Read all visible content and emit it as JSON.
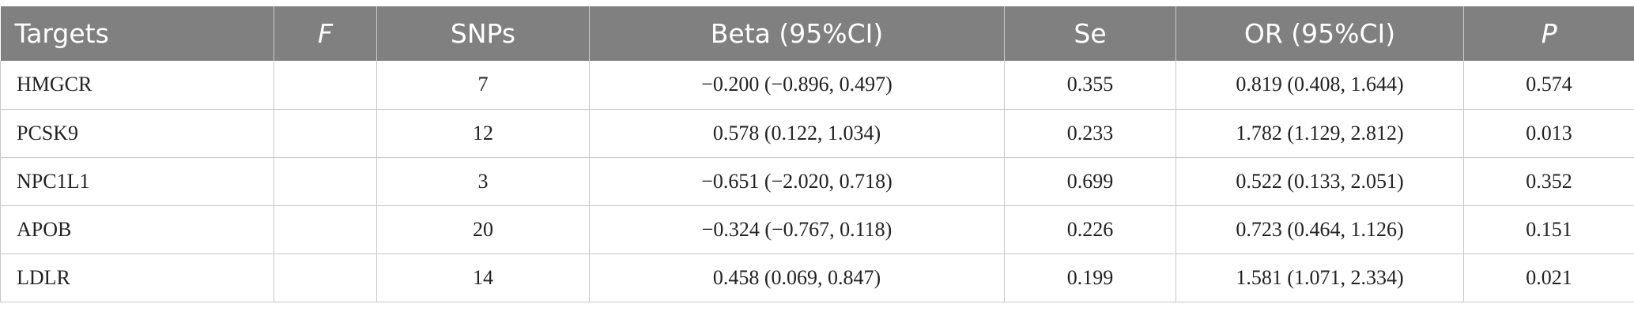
{
  "table": {
    "headers": [
      "Targets",
      "F",
      "SNPs",
      "Beta (95%CI)",
      "Se",
      "OR (95%CI)",
      "P"
    ],
    "rows": [
      [
        "HMGCR",
        "",
        "7",
        "−0.200 (−0.896, 0.497)",
        "0.355",
        "0.819 (0.408, 1.644)",
        "0.574"
      ],
      [
        "PCSK9",
        "",
        "12",
        "0.578 (0.122, 1.034)",
        "0.233",
        "1.782 (1.129, 2.812)",
        "0.013"
      ],
      [
        "NPC1L1",
        "",
        "3",
        "−0.651 (−2.020, 0.718)",
        "0.699",
        "0.522 (0.133, 2.051)",
        "0.352"
      ],
      [
        "APOB",
        "",
        "20",
        "−0.324 (−0.767, 0.118)",
        "0.226",
        "0.723 (0.464, 1.126)",
        "0.151"
      ],
      [
        "LDLR",
        "",
        "14",
        "0.458 (0.069, 0.847)",
        "0.199",
        "1.581 (1.071, 2.334)",
        "0.021"
      ]
    ]
  }
}
